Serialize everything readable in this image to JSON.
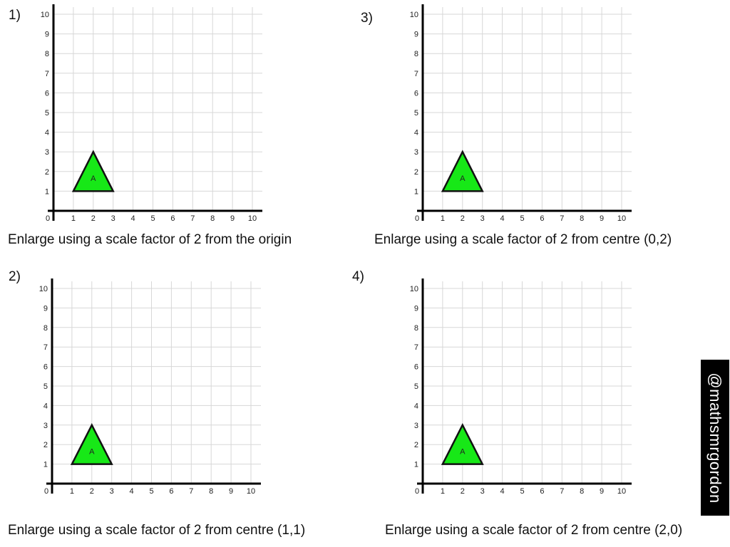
{
  "questions": [
    {
      "number": "1)",
      "caption": "Enlarge using a scale factor of 2 from the origin"
    },
    {
      "number": "2)",
      "caption": "Enlarge using a scale factor of 2 from centre (1,1)"
    },
    {
      "number": "3)",
      "caption": "Enlarge using a scale factor of 2 from centre (0,2)"
    },
    {
      "number": "4)",
      "caption": "Enlarge using a scale factor of 2 from centre (2,0)"
    }
  ],
  "shape": {
    "label": "A",
    "vertices": [
      [
        1,
        1
      ],
      [
        3,
        1
      ],
      [
        2,
        3
      ]
    ],
    "fill_color": "#17e817"
  },
  "chart_data": [
    {
      "type": "grid",
      "xlim": [
        0,
        10
      ],
      "ylim": [
        0,
        10
      ],
      "x_ticks": [
        "0",
        "1",
        "2",
        "3",
        "4",
        "5",
        "6",
        "7",
        "8",
        "9",
        "10"
      ],
      "y_ticks": [
        "1",
        "2",
        "3",
        "4",
        "5",
        "6",
        "7",
        "8",
        "9",
        "10"
      ],
      "grid": true
    },
    {
      "type": "grid",
      "xlim": [
        0,
        10
      ],
      "ylim": [
        0,
        10
      ],
      "x_ticks": [
        "0",
        "1",
        "2",
        "3",
        "4",
        "5",
        "6",
        "7",
        "8",
        "9",
        "10"
      ],
      "y_ticks": [
        "1",
        "2",
        "3",
        "4",
        "5",
        "6",
        "7",
        "8",
        "9",
        "10"
      ],
      "grid": true
    },
    {
      "type": "grid",
      "xlim": [
        0,
        10
      ],
      "ylim": [
        0,
        10
      ],
      "x_ticks": [
        "0",
        "1",
        "2",
        "3",
        "4",
        "5",
        "6",
        "7",
        "8",
        "9",
        "10"
      ],
      "y_ticks": [
        "1",
        "2",
        "3",
        "4",
        "5",
        "6",
        "7",
        "8",
        "9",
        "10"
      ],
      "grid": true
    },
    {
      "type": "grid",
      "xlim": [
        0,
        10
      ],
      "ylim": [
        0,
        10
      ],
      "x_ticks": [
        "0",
        "1",
        "2",
        "3",
        "4",
        "5",
        "6",
        "7",
        "8",
        "9",
        "10"
      ],
      "y_ticks": [
        "1",
        "2",
        "3",
        "4",
        "5",
        "6",
        "7",
        "8",
        "9",
        "10"
      ],
      "grid": true
    }
  ],
  "watermark": "@mathsmrgordon"
}
